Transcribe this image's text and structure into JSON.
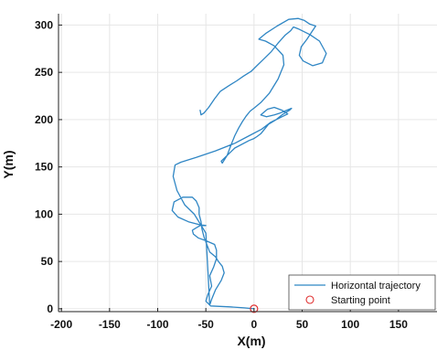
{
  "chart_data": {
    "type": "line",
    "xlabel": "X(m)",
    "ylabel": "Y(m)",
    "xlim": [
      -203,
      190
    ],
    "ylim": [
      -3,
      312
    ],
    "xticks": [
      -200,
      -150,
      -100,
      -50,
      0,
      50,
      100,
      150
    ],
    "yticks": [
      0,
      50,
      100,
      150,
      200,
      250,
      300
    ],
    "xtick_labels": [
      "-200",
      "-150",
      "-100",
      "-50",
      "0",
      "50",
      "100",
      "150"
    ],
    "ytick_labels": [
      "0",
      "50",
      "100",
      "150",
      "200",
      "250",
      "300"
    ],
    "grid": true,
    "legend_position": "bottom-right",
    "colors": {
      "trajectory": "#2f86c4",
      "start": "#e03030",
      "grid": "#e6e6e6",
      "axis": "#222222"
    },
    "series": [
      {
        "name": "Horizontal trajectory",
        "kind": "line",
        "x": [
          0,
          -10,
          -25,
          -45,
          -50,
          -48,
          -44,
          -46,
          -42,
          -39,
          -39,
          -41,
          -50,
          -58,
          -63,
          -64,
          -61,
          -56,
          -50,
          -57,
          -68,
          -79,
          -85,
          -83,
          -74,
          -64,
          -60,
          -57,
          -57,
          -55,
          -54,
          -52,
          -49,
          -46,
          -40,
          -37,
          -33,
          -31,
          -34,
          -40,
          -44,
          -46,
          -50,
          -56,
          -62,
          -72,
          -80,
          -84,
          -82,
          -76,
          -60,
          -40,
          -20,
          -5,
          8,
          17,
          27,
          35,
          29,
          21,
          14,
          7,
          13,
          21,
          27,
          34,
          39,
          37,
          29,
          23,
          15,
          11,
          7,
          3,
          0,
          -5,
          -20,
          -34,
          -33,
          -28,
          -24,
          -20,
          -16,
          -12,
          -8,
          -4,
          1,
          7,
          16,
          25,
          31,
          30,
          21,
          12,
          5,
          12,
          24,
          36,
          46,
          52,
          58,
          64,
          60,
          55,
          49,
          47,
          51,
          61,
          71,
          75,
          68,
          58,
          46,
          41,
          38,
          32,
          25,
          18,
          10,
          3,
          -3,
          -11,
          -18,
          -26,
          -35,
          -41,
          -47,
          -52,
          -55,
          -56
        ],
        "y": [
          0,
          1,
          2,
          3,
          8,
          15,
          24,
          35,
          44,
          53,
          62,
          68,
          72,
          75,
          79,
          83,
          85,
          88,
          88,
          89,
          92,
          97,
          104,
          113,
          118,
          118,
          114,
          107,
          100,
          92,
          84,
          76,
          68,
          60,
          55,
          50,
          45,
          38,
          30,
          20,
          10,
          4,
          80,
          90,
          100,
          110,
          125,
          140,
          152,
          155,
          160,
          167,
          175,
          183,
          190,
          197,
          202,
          206,
          210,
          213,
          211,
          205,
          203,
          205,
          207,
          210,
          212,
          210,
          205,
          200,
          195,
          190,
          185,
          182,
          180,
          178,
          170,
          156,
          154,
          162,
          173,
          183,
          191,
          198,
          204,
          209,
          213,
          218,
          228,
          243,
          258,
          268,
          278,
          283,
          285,
          291,
          299,
          306,
          307,
          305,
          301,
          299,
          293,
          285,
          277,
          268,
          262,
          257,
          260,
          270,
          283,
          290,
          296,
          298,
          294,
          289,
          281,
          272,
          264,
          257,
          251,
          246,
          241,
          236,
          230,
          222,
          213,
          207,
          205,
          210
        ]
      },
      {
        "name": "Starting point",
        "kind": "marker",
        "x": [
          0
        ],
        "y": [
          0
        ]
      }
    ]
  }
}
